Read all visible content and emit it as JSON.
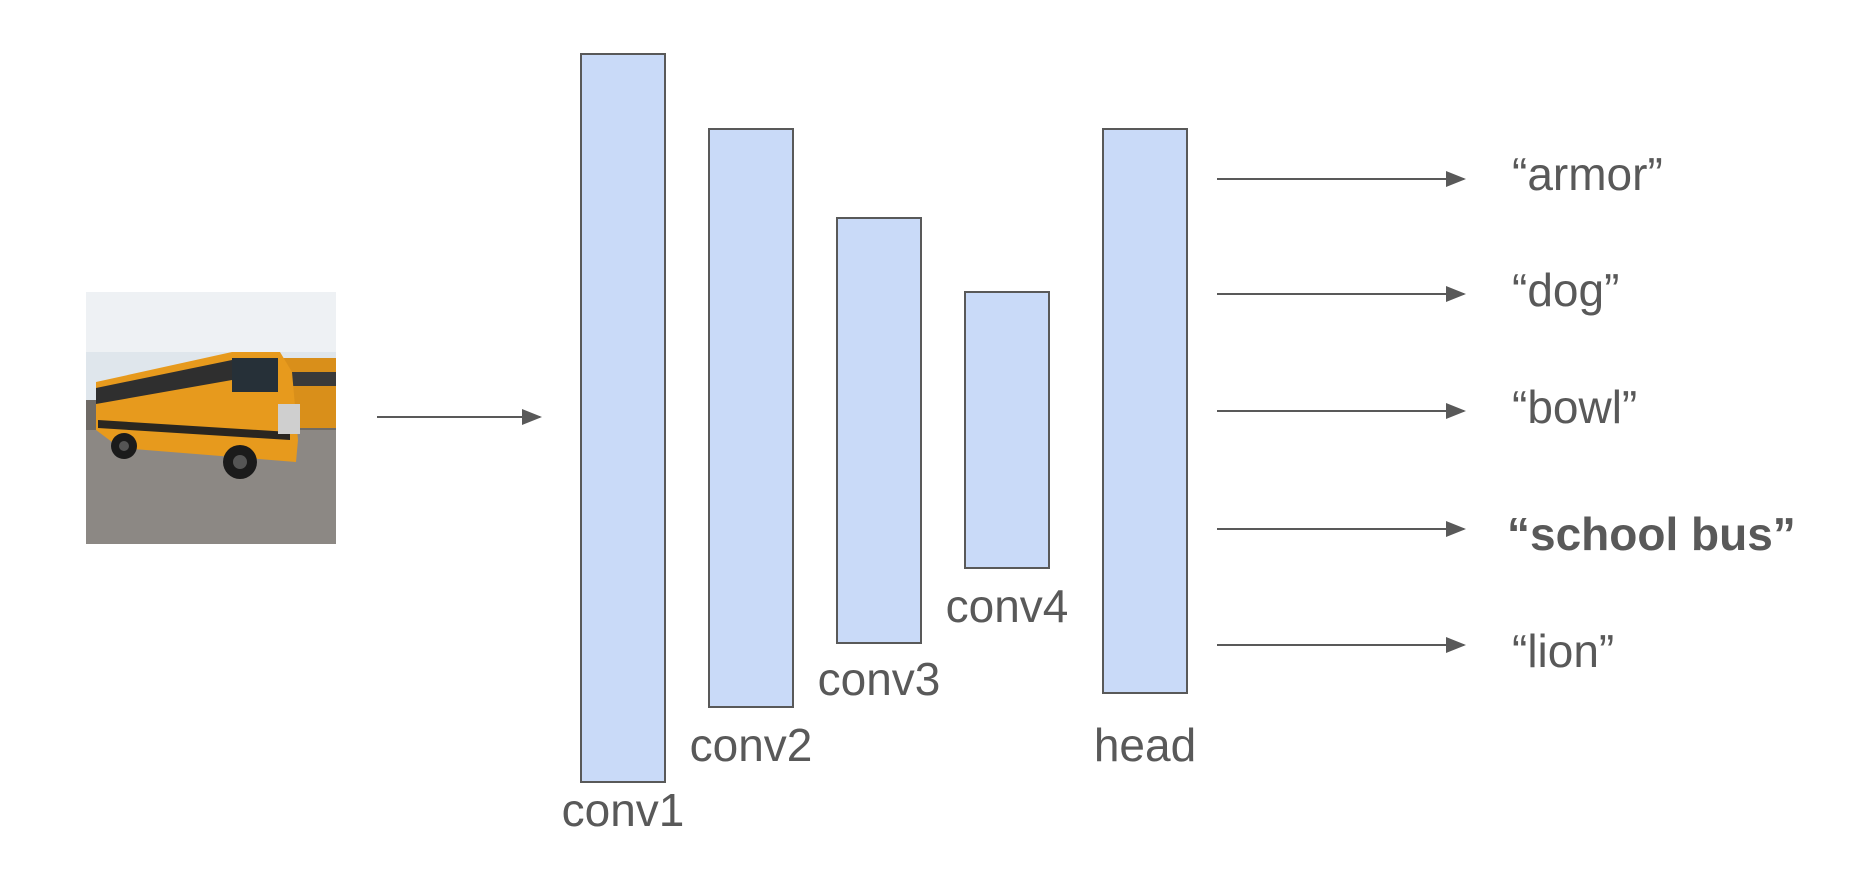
{
  "input_image": {
    "icon": "school-bus-photo",
    "colors": {
      "sky": "#dfe6ec",
      "ground": "#8c8884",
      "bus": "#e79a1d",
      "stripe": "#2a2620"
    }
  },
  "layers": [
    {
      "id": "conv1",
      "label": "conv1"
    },
    {
      "id": "conv2",
      "label": "conv2"
    },
    {
      "id": "conv3",
      "label": "conv3"
    },
    {
      "id": "conv4",
      "label": "conv4"
    },
    {
      "id": "head",
      "label": "head"
    }
  ],
  "outputs": [
    {
      "label": "“armor”",
      "highlight": false
    },
    {
      "label": "“dog”",
      "highlight": false
    },
    {
      "label": "“bowl”",
      "highlight": false
    },
    {
      "label": "“school bus”",
      "highlight": true
    },
    {
      "label": "“lion”",
      "highlight": false
    }
  ],
  "colors": {
    "layer_fill": "#c9daf8",
    "layer_stroke": "#595959",
    "arrow": "#595959",
    "text": "#595959"
  }
}
